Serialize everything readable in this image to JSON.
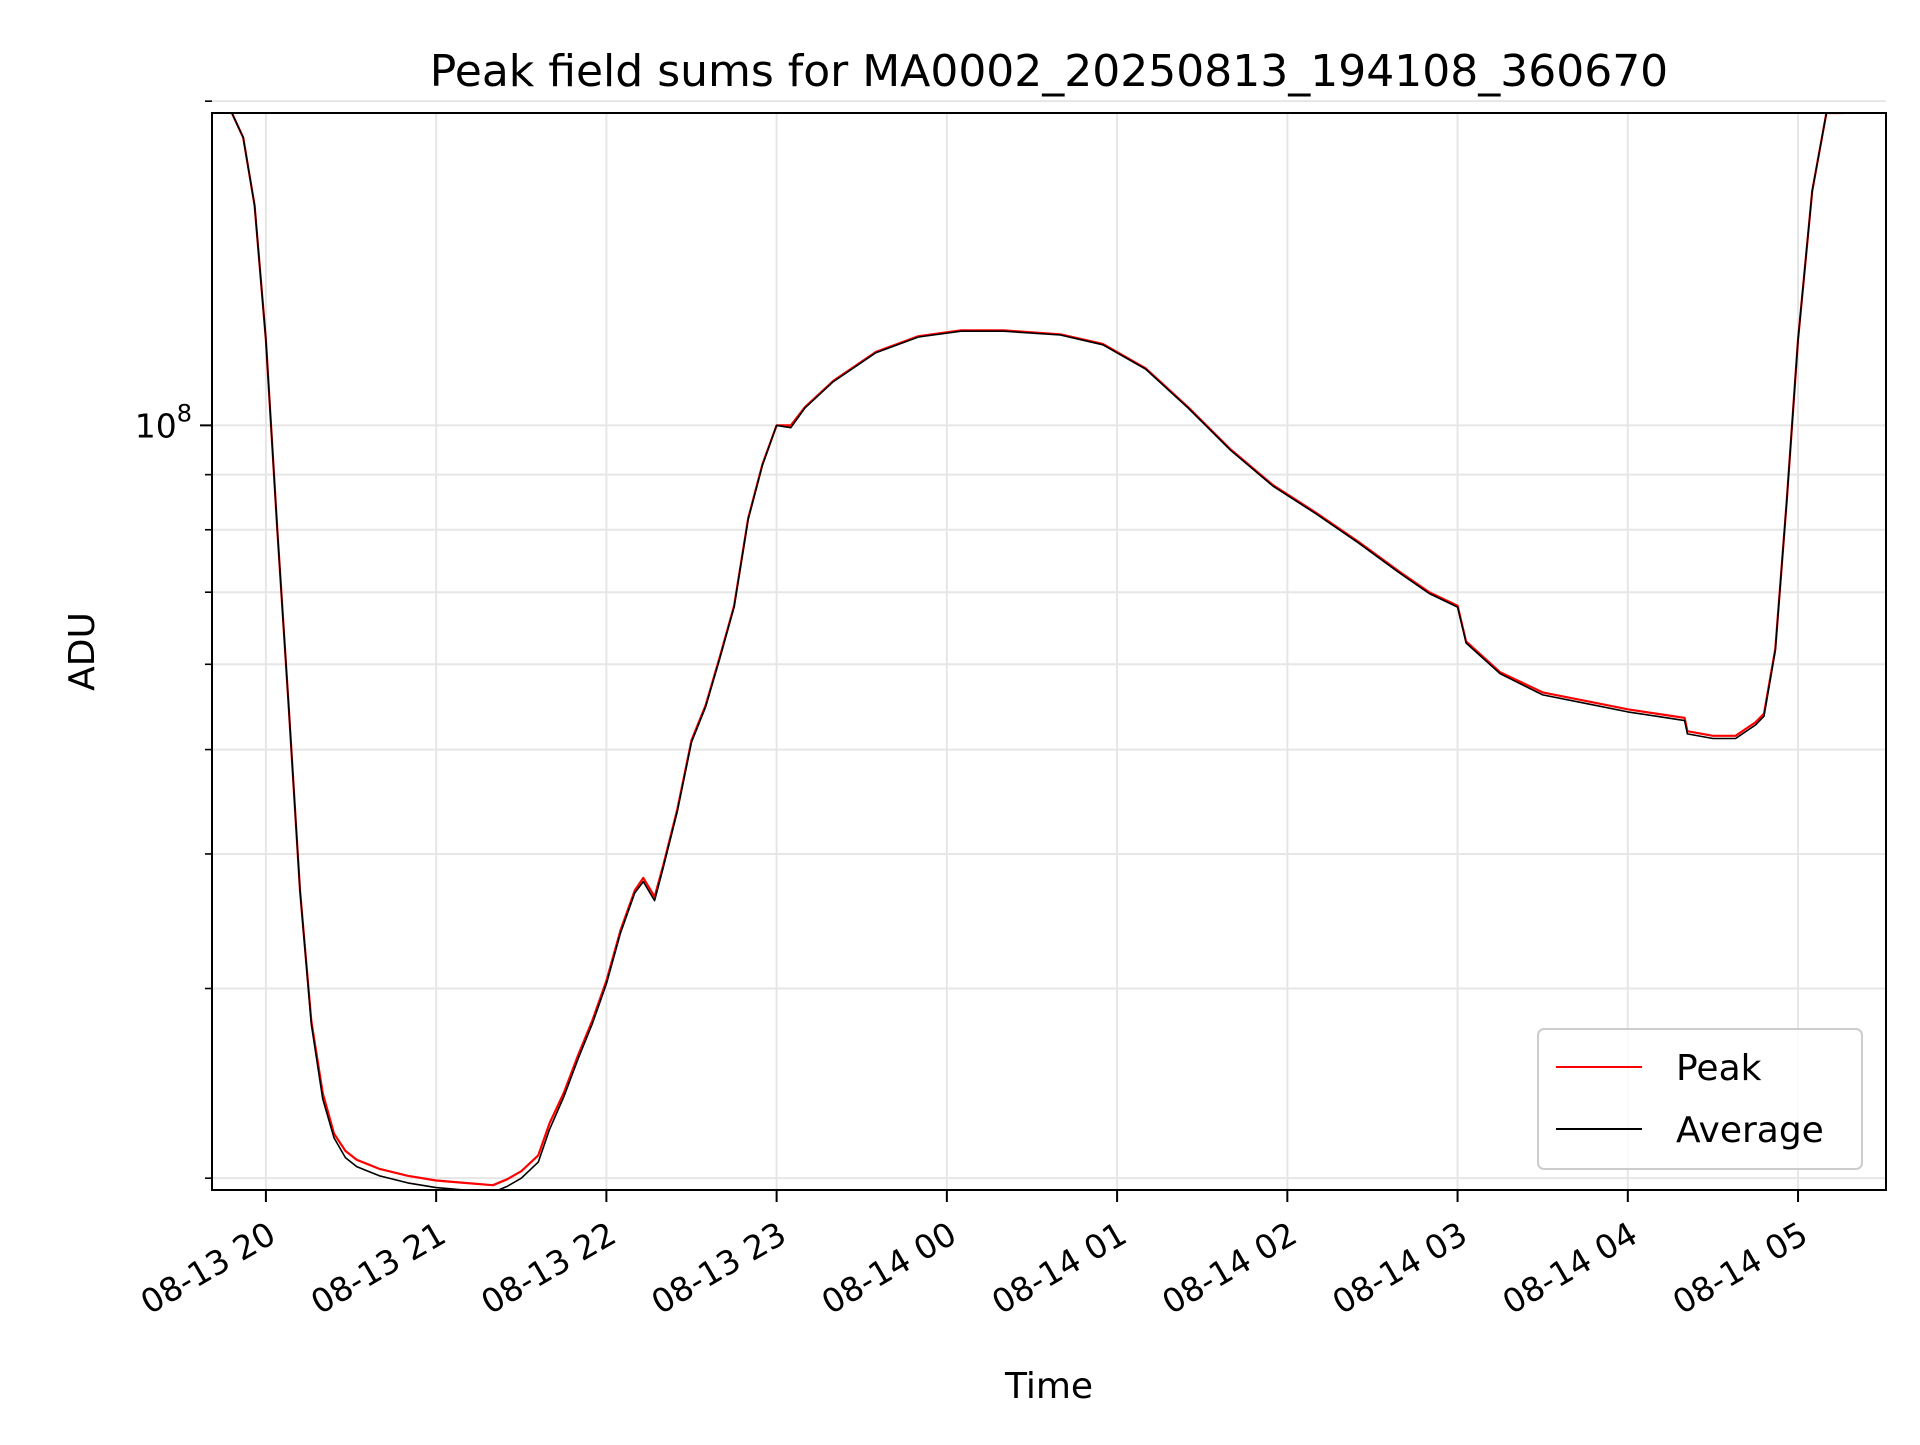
{
  "chart_data": {
    "type": "line",
    "title": "Peak field sums for MA0002_20250813_194108_360670",
    "xlabel": "Time",
    "ylabel": "ADU",
    "yscale": "log",
    "ylim": [
      19500000,
      195000000
    ],
    "xlim": [
      "2025-08-13 19:41",
      "2025-08-14 05:31"
    ],
    "x_ticks": [
      {
        "time": "2025-08-13 20:00",
        "label": "08-13 20"
      },
      {
        "time": "2025-08-13 21:00",
        "label": "08-13 21"
      },
      {
        "time": "2025-08-13 22:00",
        "label": "08-13 22"
      },
      {
        "time": "2025-08-13 23:00",
        "label": "08-13 23"
      },
      {
        "time": "2025-08-14 00:00",
        "label": "08-14 00"
      },
      {
        "time": "2025-08-14 01:00",
        "label": "08-14 01"
      },
      {
        "time": "2025-08-14 02:00",
        "label": "08-14 02"
      },
      {
        "time": "2025-08-14 03:00",
        "label": "08-14 03"
      },
      {
        "time": "2025-08-14 04:00",
        "label": "08-14 04"
      },
      {
        "time": "2025-08-14 05:00",
        "label": "08-14 05"
      }
    ],
    "y_major_ticks": [
      {
        "value": 100000000,
        "label_base": "10",
        "label_exp": "8"
      }
    ],
    "y_minor_ticks": [
      20000000,
      30000000,
      40000000,
      50000000,
      60000000,
      70000000,
      80000000,
      90000000,
      200000000
    ],
    "grid": true,
    "legend_position": "lower-right",
    "series": [
      {
        "name": "Peak",
        "color": "#ff0000",
        "x": [
          "2025-08-13 19:48",
          "2025-08-13 19:52",
          "2025-08-13 19:56",
          "2025-08-13 20:00",
          "2025-08-13 20:04",
          "2025-08-13 20:08",
          "2025-08-13 20:12",
          "2025-08-13 20:16",
          "2025-08-13 20:20",
          "2025-08-13 20:24",
          "2025-08-13 20:28",
          "2025-08-13 20:32",
          "2025-08-13 20:36",
          "2025-08-13 20:40",
          "2025-08-13 20:50",
          "2025-08-13 21:00",
          "2025-08-13 21:10",
          "2025-08-13 21:20",
          "2025-08-13 21:25",
          "2025-08-13 21:30",
          "2025-08-13 21:36",
          "2025-08-13 21:40",
          "2025-08-13 21:45",
          "2025-08-13 21:50",
          "2025-08-13 21:55",
          "2025-08-13 22:00",
          "2025-08-13 22:05",
          "2025-08-13 22:10",
          "2025-08-13 22:13",
          "2025-08-13 22:17",
          "2025-08-13 22:20",
          "2025-08-13 22:25",
          "2025-08-13 22:30",
          "2025-08-13 22:35",
          "2025-08-13 22:40",
          "2025-08-13 22:45",
          "2025-08-13 22:50",
          "2025-08-13 22:55",
          "2025-08-13 23:00",
          "2025-08-13 23:05",
          "2025-08-13 23:10",
          "2025-08-13 23:20",
          "2025-08-13 23:35",
          "2025-08-13 23:50",
          "2025-08-14 00:05",
          "2025-08-14 00:20",
          "2025-08-14 00:40",
          "2025-08-14 00:55",
          "2025-08-14 01:10",
          "2025-08-14 01:25",
          "2025-08-14 01:40",
          "2025-08-14 01:55",
          "2025-08-14 02:10",
          "2025-08-14 02:25",
          "2025-08-14 02:40",
          "2025-08-14 02:50",
          "2025-08-14 03:00",
          "2025-08-14 03:03",
          "2025-08-14 03:15",
          "2025-08-14 03:30",
          "2025-08-14 03:45",
          "2025-08-14 04:00",
          "2025-08-14 04:10",
          "2025-08-14 04:20",
          "2025-08-14 04:21",
          "2025-08-14 04:30",
          "2025-08-14 04:38",
          "2025-08-14 04:45",
          "2025-08-14 04:48",
          "2025-08-14 04:52",
          "2025-08-14 04:56",
          "2025-08-14 05:00",
          "2025-08-14 05:05",
          "2025-08-14 05:10",
          "2025-08-14 05:16"
        ],
        "values": [
          195000000,
          185000000,
          160000000,
          120000000,
          80000000,
          55000000,
          37000000,
          28000000,
          24000000,
          22000000,
          21200000,
          20800000,
          20600000,
          20400000,
          20100000,
          19900000,
          19800000,
          19700000,
          19950000,
          20300000,
          21000000,
          22500000,
          24000000,
          26000000,
          28000000,
          30500000,
          34000000,
          37000000,
          38000000,
          36500000,
          39000000,
          44000000,
          51000000,
          55000000,
          61000000,
          68000000,
          82000000,
          92000000,
          100000000,
          100000000,
          104000000,
          110000000,
          117000000,
          121000000,
          122500000,
          122500000,
          121500000,
          119000000,
          113000000,
          104000000,
          95000000,
          88000000,
          83000000,
          78000000,
          73000000,
          70000000,
          68000000,
          63000000,
          59000000,
          56500000,
          55500000,
          54500000,
          54000000,
          53500000,
          52000000,
          51500000,
          51500000,
          53000000,
          54000000,
          62000000,
          85000000,
          120000000,
          165000000,
          195000000,
          195000000
        ]
      },
      {
        "name": "Average",
        "color": "#000000",
        "x": [
          "2025-08-13 19:48",
          "2025-08-13 19:52",
          "2025-08-13 19:56",
          "2025-08-13 20:00",
          "2025-08-13 20:04",
          "2025-08-13 20:08",
          "2025-08-13 20:12",
          "2025-08-13 20:16",
          "2025-08-13 20:20",
          "2025-08-13 20:24",
          "2025-08-13 20:28",
          "2025-08-13 20:32",
          "2025-08-13 20:36",
          "2025-08-13 20:40",
          "2025-08-13 20:50",
          "2025-08-13 21:00",
          "2025-08-13 21:10",
          "2025-08-13 21:20",
          "2025-08-13 21:25",
          "2025-08-13 21:30",
          "2025-08-13 21:36",
          "2025-08-13 21:40",
          "2025-08-13 21:45",
          "2025-08-13 21:50",
          "2025-08-13 21:55",
          "2025-08-13 22:00",
          "2025-08-13 22:05",
          "2025-08-13 22:10",
          "2025-08-13 22:13",
          "2025-08-13 22:17",
          "2025-08-13 22:20",
          "2025-08-13 22:25",
          "2025-08-13 22:30",
          "2025-08-13 22:35",
          "2025-08-13 22:40",
          "2025-08-13 22:45",
          "2025-08-13 22:50",
          "2025-08-13 22:55",
          "2025-08-13 23:00",
          "2025-08-13 23:05",
          "2025-08-13 23:10",
          "2025-08-13 23:20",
          "2025-08-13 23:35",
          "2025-08-13 23:50",
          "2025-08-14 00:05",
          "2025-08-14 00:20",
          "2025-08-14 00:40",
          "2025-08-14 00:55",
          "2025-08-14 01:10",
          "2025-08-14 01:25",
          "2025-08-14 01:40",
          "2025-08-14 01:55",
          "2025-08-14 02:10",
          "2025-08-14 02:25",
          "2025-08-14 02:40",
          "2025-08-14 02:50",
          "2025-08-14 03:00",
          "2025-08-14 03:03",
          "2025-08-14 03:15",
          "2025-08-14 03:30",
          "2025-08-14 03:45",
          "2025-08-14 04:00",
          "2025-08-14 04:10",
          "2025-08-14 04:20",
          "2025-08-14 04:21",
          "2025-08-14 04:30",
          "2025-08-14 04:38",
          "2025-08-14 04:45",
          "2025-08-14 04:48",
          "2025-08-14 04:52",
          "2025-08-14 04:56",
          "2025-08-14 05:00",
          "2025-08-14 05:05",
          "2025-08-14 05:10",
          "2025-08-14 05:16"
        ],
        "values": [
          195000000,
          185000000,
          160000000,
          120000000,
          80000000,
          55000000,
          37000000,
          27800000,
          23700000,
          21800000,
          20900000,
          20500000,
          20300000,
          20100000,
          19800000,
          19600000,
          19500000,
          19400000,
          19650000,
          20000000,
          20700000,
          22200000,
          23800000,
          25800000,
          27800000,
          30300000,
          33800000,
          36800000,
          37700000,
          36200000,
          38800000,
          43800000,
          50800000,
          54800000,
          60800000,
          67800000,
          81800000,
          91800000,
          100000000,
          99500000,
          103800000,
          109800000,
          116800000,
          120800000,
          122300000,
          122300000,
          121300000,
          118800000,
          112800000,
          103800000,
          94800000,
          87800000,
          82800000,
          77800000,
          72800000,
          69800000,
          67800000,
          62800000,
          58800000,
          56200000,
          55200000,
          54200000,
          53700000,
          53200000,
          51700000,
          51200000,
          51200000,
          52700000,
          53700000,
          61800000,
          85000000,
          120000000,
          165000000,
          195000000,
          195000000
        ]
      }
    ]
  }
}
